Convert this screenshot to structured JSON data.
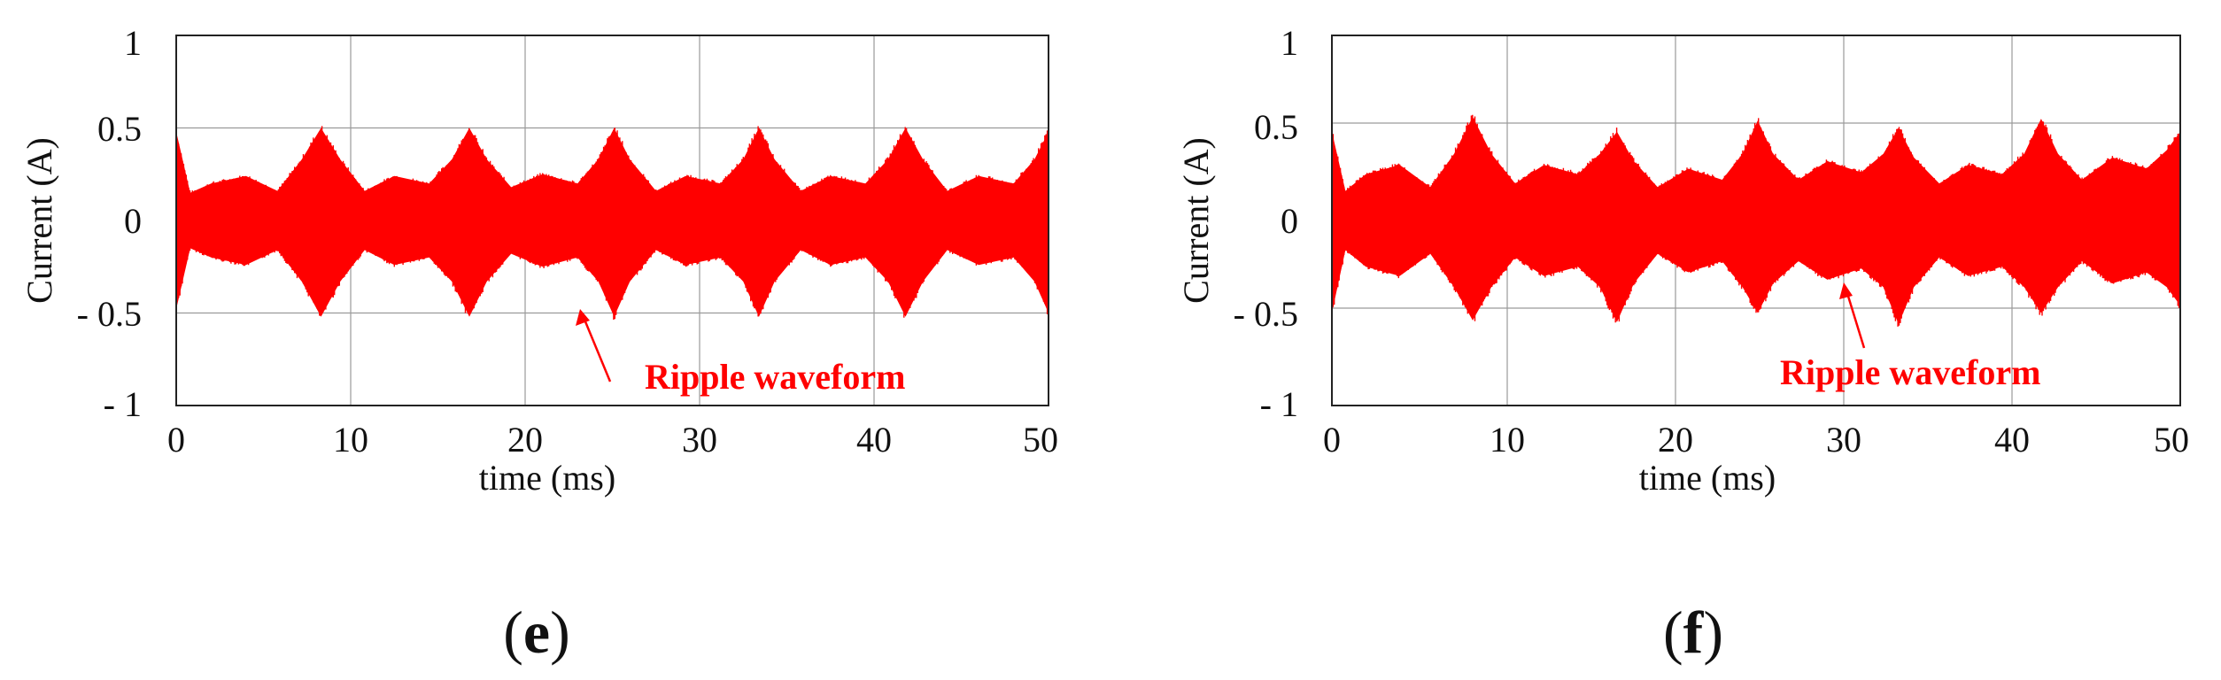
{
  "colors": {
    "signal": "#ff0000",
    "grid": "#9a9a9a",
    "frame": "#222222"
  },
  "chart_data": [
    {
      "type": "line",
      "panel": "e",
      "xlabel": "time (ms)",
      "ylabel": "Current (A)",
      "xlim": [
        0,
        50
      ],
      "ylim": [
        -1,
        1
      ],
      "x_ticks": [
        "0",
        "10",
        "20",
        "30",
        "40",
        "50"
      ],
      "y_ticks": [
        "1",
        "0.5",
        "0",
        "- 0.5",
        "- 1"
      ],
      "grid": true,
      "series": [
        {
          "style": "ripple envelope (band)",
          "x": [
            0,
            0.8,
            2,
            4,
            5.8,
            7.2,
            8.3,
            9.4,
            10.8,
            12.5,
            14.5,
            15.8,
            16.8,
            17.8,
            19.2,
            21,
            23,
            24.2,
            25.1,
            26,
            27.5,
            29.2,
            31.2,
            32.5,
            33.4,
            34.3,
            35.8,
            37.5,
            39.5,
            40.8,
            41.8,
            42.8,
            44.2,
            46,
            48,
            49.2,
            50
          ],
          "upper": [
            0.48,
            0.15,
            0.2,
            0.24,
            0.16,
            0.33,
            0.5,
            0.33,
            0.16,
            0.24,
            0.2,
            0.33,
            0.5,
            0.33,
            0.18,
            0.25,
            0.2,
            0.33,
            0.5,
            0.33,
            0.16,
            0.24,
            0.2,
            0.33,
            0.5,
            0.33,
            0.16,
            0.24,
            0.2,
            0.33,
            0.5,
            0.33,
            0.16,
            0.24,
            0.2,
            0.33,
            0.48
          ],
          "lower": [
            -0.48,
            -0.15,
            -0.2,
            -0.24,
            -0.16,
            -0.33,
            -0.52,
            -0.33,
            -0.16,
            -0.24,
            -0.2,
            -0.33,
            -0.52,
            -0.33,
            -0.18,
            -0.25,
            -0.2,
            -0.33,
            -0.52,
            -0.33,
            -0.16,
            -0.24,
            -0.2,
            -0.33,
            -0.52,
            -0.33,
            -0.16,
            -0.24,
            -0.2,
            -0.33,
            -0.52,
            -0.33,
            -0.16,
            -0.24,
            -0.2,
            -0.33,
            -0.5
          ]
        }
      ],
      "annotation": {
        "text": "Ripple waveform",
        "points_to": [
          24.5,
          -0.52
        ]
      }
    },
    {
      "type": "line",
      "panel": "f",
      "xlabel": "time (ms)",
      "ylabel": "Current (A)",
      "xlim": [
        0,
        50
      ],
      "ylim": [
        -1,
        1
      ],
      "x_ticks": [
        "0",
        "10",
        "20",
        "30",
        "40",
        "50"
      ],
      "y_ticks": [
        "1",
        "0.5",
        "0",
        "- 0.5",
        "- 1"
      ],
      "grid": true,
      "series": [
        {
          "style": "ripple envelope (band)",
          "x": [
            0,
            0.8,
            2,
            4,
            5.8,
            7.2,
            8.3,
            9.4,
            10.8,
            12.5,
            14.5,
            15.8,
            16.8,
            17.8,
            19.2,
            21,
            23,
            24.2,
            25.1,
            26,
            27.5,
            29.2,
            31.2,
            32.5,
            33.4,
            34.3,
            35.8,
            37.5,
            39.5,
            40.8,
            41.8,
            42.8,
            44.2,
            46,
            48,
            49.2,
            50
          ],
          "upper": [
            0.48,
            0.16,
            0.25,
            0.3,
            0.18,
            0.36,
            0.56,
            0.36,
            0.2,
            0.3,
            0.25,
            0.36,
            0.48,
            0.32,
            0.18,
            0.28,
            0.22,
            0.36,
            0.54,
            0.36,
            0.22,
            0.32,
            0.26,
            0.36,
            0.5,
            0.34,
            0.2,
            0.3,
            0.25,
            0.36,
            0.55,
            0.36,
            0.22,
            0.34,
            0.28,
            0.38,
            0.48
          ],
          "lower": [
            -0.5,
            -0.16,
            -0.25,
            -0.3,
            -0.18,
            -0.36,
            -0.54,
            -0.36,
            -0.2,
            -0.3,
            -0.25,
            -0.36,
            -0.55,
            -0.34,
            -0.18,
            -0.28,
            -0.22,
            -0.36,
            -0.5,
            -0.34,
            -0.22,
            -0.32,
            -0.26,
            -0.36,
            -0.56,
            -0.36,
            -0.2,
            -0.3,
            -0.25,
            -0.36,
            -0.5,
            -0.36,
            -0.22,
            -0.34,
            -0.28,
            -0.36,
            -0.46
          ]
        }
      ],
      "annotation": {
        "text": "Ripple waveform",
        "points_to": [
          29.5,
          -0.38
        ]
      }
    }
  ],
  "panel_labels": [
    {
      "open": "(",
      "letter": "e",
      "close": ")"
    },
    {
      "open": "(",
      "letter": "f",
      "close": ")"
    }
  ]
}
